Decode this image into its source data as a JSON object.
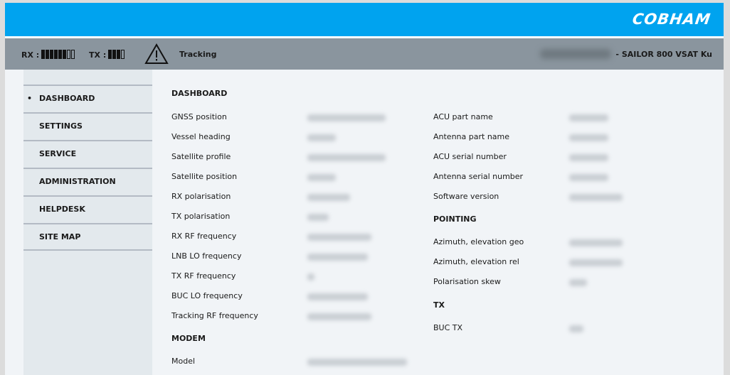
{
  "header": {
    "logo": "COBHAM",
    "brand_color": "#00a3ef"
  },
  "status": {
    "rx_label": "RX :",
    "rx_level": 6,
    "rx_max": 8,
    "tx_label": "TX :",
    "tx_level": 3,
    "tx_max": 4,
    "warning_icon": "warning-triangle-icon",
    "state": "Tracking",
    "device": "- SAILOR 800 VSAT Ku"
  },
  "sidebar": {
    "items": [
      {
        "label": "DASHBOARD",
        "active": true,
        "bullet": "•"
      },
      {
        "label": "SETTINGS"
      },
      {
        "label": "SERVICE"
      },
      {
        "label": "ADMINISTRATION"
      },
      {
        "label": "HELPDESK"
      },
      {
        "label": "SITE MAP"
      }
    ]
  },
  "main": {
    "dashboard_title": "DASHBOARD",
    "left_rows": [
      "GNSS position",
      "Vessel heading",
      "Satellite profile",
      "Satellite position",
      "RX polarisation",
      "TX polarisation",
      "RX RF frequency",
      "LNB LO frequency",
      "TX RF frequency",
      "BUC LO frequency",
      "Tracking RF frequency"
    ],
    "modem_title": "MODEM",
    "modem_rows": [
      "Model"
    ],
    "right_rows": [
      "ACU part name",
      "Antenna part name",
      "ACU serial number",
      "Antenna serial number",
      "Software version"
    ],
    "pointing_title": "POINTING",
    "pointing_rows": [
      "Azimuth, elevation geo",
      "Azimuth, elevation rel",
      "Polarisation skew"
    ],
    "tx_title": "TX",
    "tx_rows": [
      "BUC TX"
    ]
  }
}
